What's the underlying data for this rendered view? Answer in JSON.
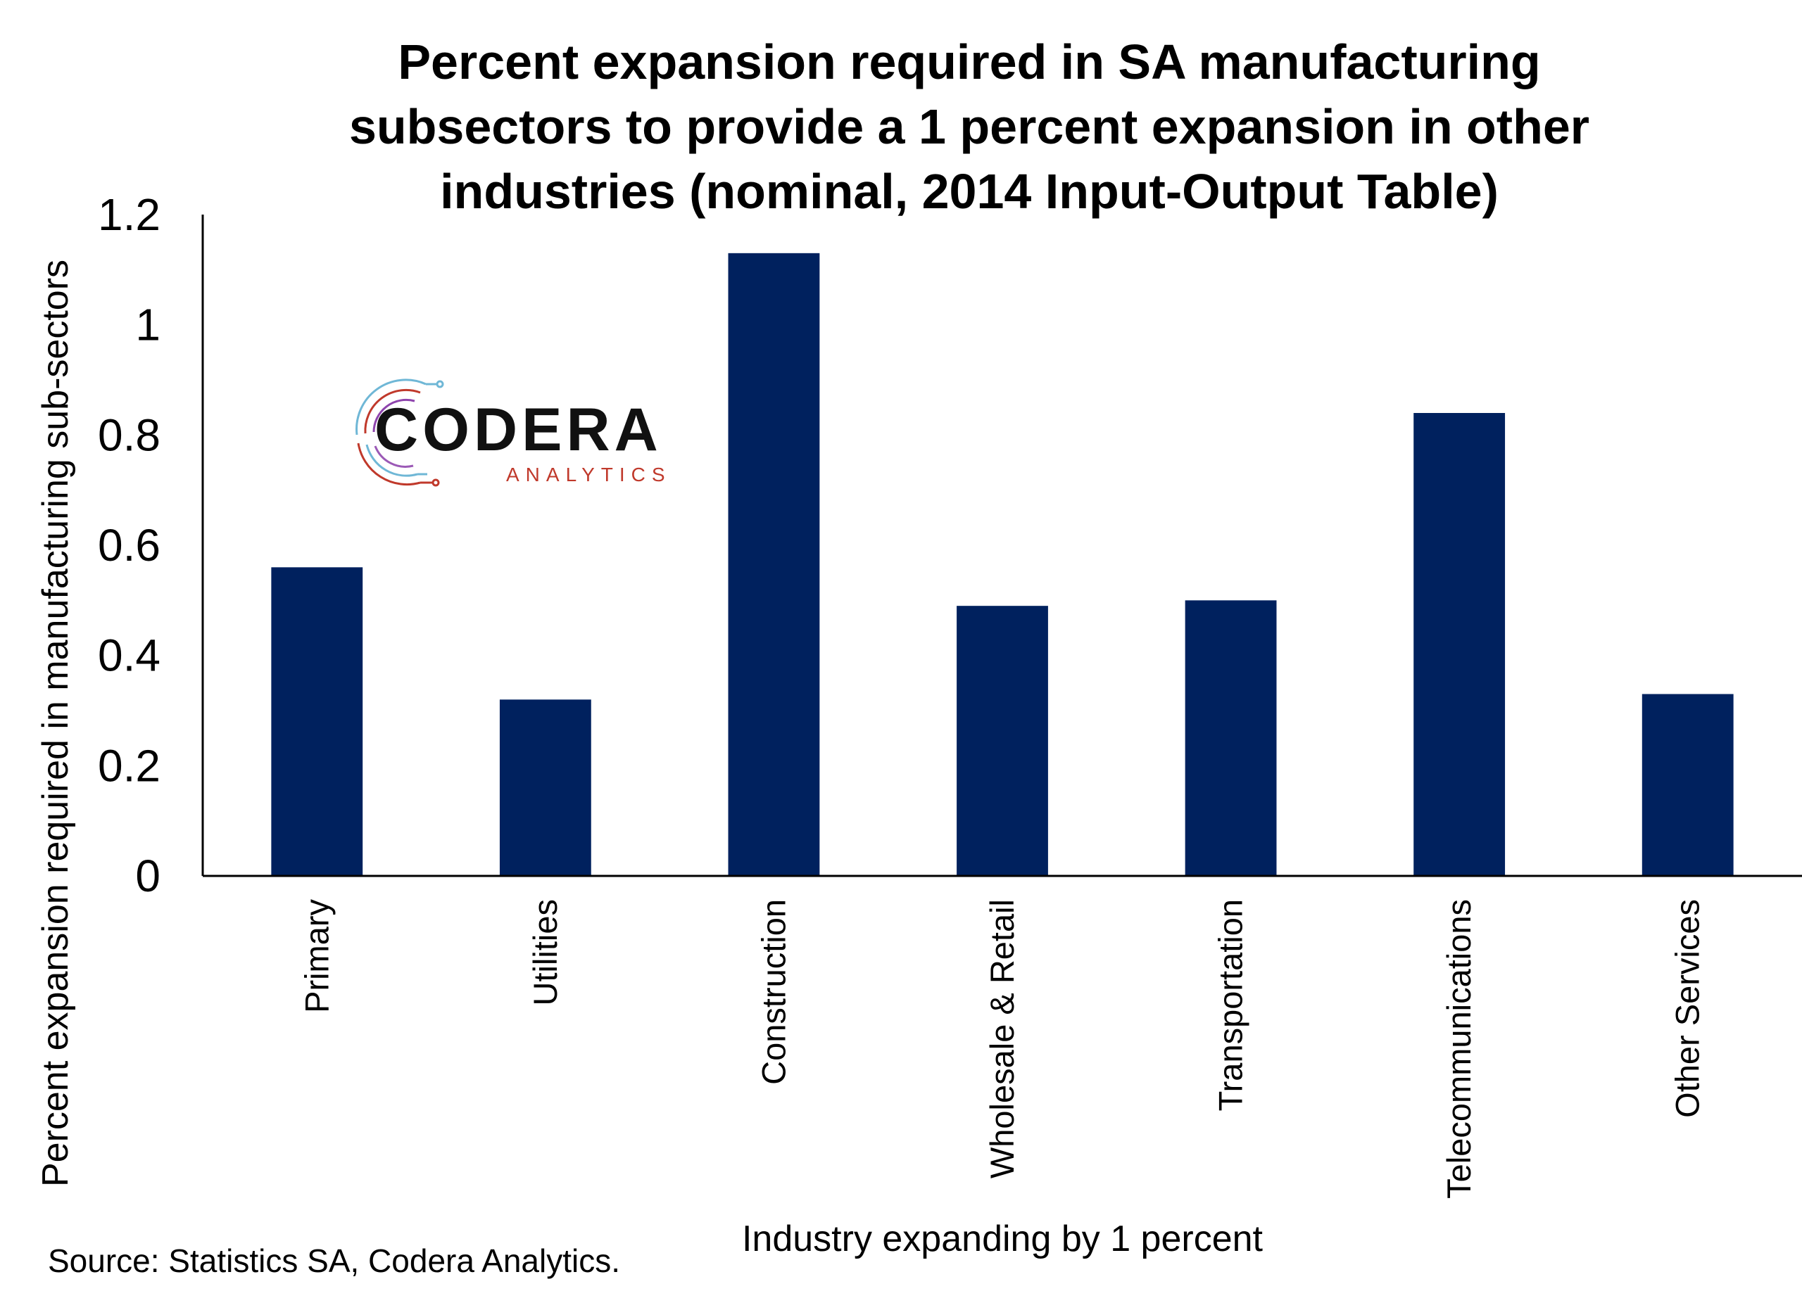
{
  "chart_data": {
    "type": "bar",
    "title_lines": [
      "Percent expansion required in SA manufacturing",
      "subsectors to provide a 1 percent expansion in other",
      "industries (nominal, 2014 Input-Output Table)"
    ],
    "xlabel": "Industry expanding by 1 percent",
    "ylabel": "Percent expansion required in manufacturing sub-sectors",
    "ylim": [
      0,
      1.2
    ],
    "yticks": [
      "0",
      "0.2",
      "0.4",
      "0.6",
      "0.8",
      "1",
      "1.2"
    ],
    "categories": [
      "Primary",
      "Utilities",
      "Construction",
      "Wholesale & Retail",
      "Transportation",
      "Telecommunications",
      "Other Services"
    ],
    "values": [
      0.56,
      0.32,
      1.13,
      0.49,
      0.5,
      0.84,
      0.33
    ],
    "bar_color": "#00215e",
    "grid": false,
    "legend": "none"
  },
  "logo": {
    "name": "CODERA",
    "sub": "ANALYTICS",
    "icon": "circuit-circle-icon"
  },
  "source": "Source: Statistics SA, Codera Analytics."
}
